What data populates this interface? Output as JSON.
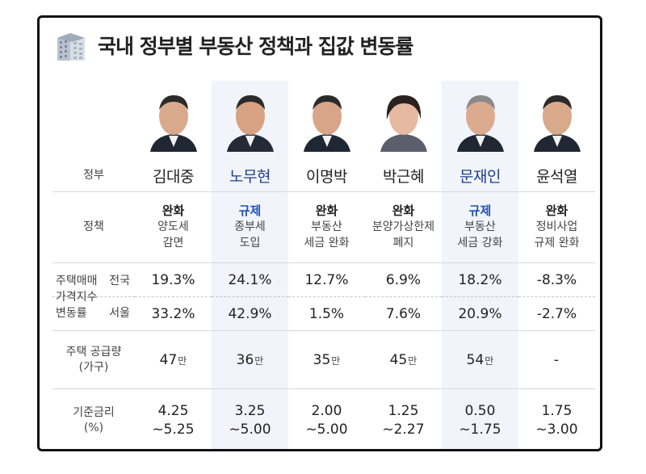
{
  "title": "국내 정부별 부동산 정책과 집값 변동률",
  "icon": "building-icon",
  "colors": {
    "highlight": "#f1f4fb",
    "regulation": "#1f52b8",
    "regulation_name": "#1f3f8f"
  },
  "labels": {
    "government": "정부",
    "policy": "정책",
    "price_index_1": "주택매매",
    "price_index_2": "가격지수",
    "price_index_3": "변동률",
    "nationwide": "전국",
    "seoul": "서울",
    "supply_1": "주택 공급량",
    "supply_2": "(가구)",
    "rate_1": "기준금리",
    "rate_2": "(%)"
  },
  "governments": [
    {
      "name": "김대중",
      "policy": "완화",
      "policy_desc_1": "양도세",
      "policy_desc_2": "감면",
      "nationwide": "19.3%",
      "seoul": "33.2%",
      "supply": "47",
      "supply_unit": "만",
      "rate_1": "4.25",
      "rate_2": "~5.25"
    },
    {
      "name": "노무현",
      "policy": "규제",
      "policy_desc_1": "종부세",
      "policy_desc_2": "도입",
      "nationwide": "24.1%",
      "seoul": "42.9%",
      "supply": "36",
      "supply_unit": "만",
      "rate_1": "3.25",
      "rate_2": "~5.00"
    },
    {
      "name": "이명박",
      "policy": "완화",
      "policy_desc_1": "부동산",
      "policy_desc_2": "세금 완화",
      "nationwide": "12.7%",
      "seoul": "1.5%",
      "supply": "35",
      "supply_unit": "만",
      "rate_1": "2.00",
      "rate_2": "~5.00"
    },
    {
      "name": "박근혜",
      "policy": "완화",
      "policy_desc_1": "분양가상한제",
      "policy_desc_2": "폐지",
      "nationwide": "6.9%",
      "seoul": "7.6%",
      "supply": "45",
      "supply_unit": "만",
      "rate_1": "1.25",
      "rate_2": "~2.27"
    },
    {
      "name": "문재인",
      "policy": "규제",
      "policy_desc_1": "부동산",
      "policy_desc_2": "세금 강화",
      "nationwide": "18.2%",
      "seoul": "20.9%",
      "supply": "54",
      "supply_unit": "만",
      "rate_1": "0.50",
      "rate_2": "~1.75"
    },
    {
      "name": "윤석열",
      "policy": "완화",
      "policy_desc_1": "정비사업",
      "policy_desc_2": "규제 완화",
      "nationwide": "-8.3%",
      "seoul": "-2.7%",
      "supply": "-",
      "supply_unit": "",
      "rate_1": "1.75",
      "rate_2": "~3.00"
    }
  ]
}
